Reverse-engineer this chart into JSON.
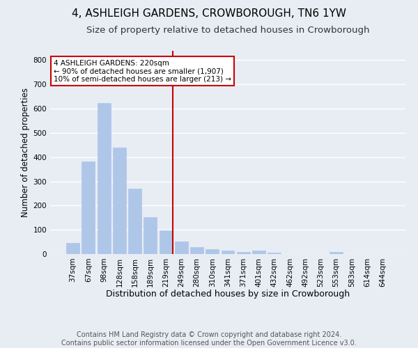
{
  "title": "4, ASHLEIGH GARDENS, CROWBOROUGH, TN6 1YW",
  "subtitle": "Size of property relative to detached houses in Crowborough",
  "xlabel": "Distribution of detached houses by size in Crowborough",
  "ylabel": "Number of detached properties",
  "categories": [
    "37sqm",
    "67sqm",
    "98sqm",
    "128sqm",
    "158sqm",
    "189sqm",
    "219sqm",
    "249sqm",
    "280sqm",
    "310sqm",
    "341sqm",
    "371sqm",
    "401sqm",
    "432sqm",
    "462sqm",
    "492sqm",
    "523sqm",
    "553sqm",
    "583sqm",
    "614sqm",
    "644sqm"
  ],
  "values": [
    47,
    383,
    623,
    438,
    270,
    152,
    97,
    53,
    30,
    20,
    15,
    10,
    13,
    5,
    0,
    0,
    0,
    8,
    0,
    0,
    0
  ],
  "bar_color": "#aec6e8",
  "bar_edgecolor": "#aec6e8",
  "background_color": "#e8edf4",
  "grid_color": "#ffffff",
  "vline_color": "#cc0000",
  "annotation_text": "4 ASHLEIGH GARDENS: 220sqm\n← 90% of detached houses are smaller (1,907)\n10% of semi-detached houses are larger (213) →",
  "annotation_box_color": "#ffffff",
  "annotation_box_edgecolor": "#cc0000",
  "footer_line1": "Contains HM Land Registry data © Crown copyright and database right 2024.",
  "footer_line2": "Contains public sector information licensed under the Open Government Licence v3.0.",
  "ylim": [
    0,
    840
  ],
  "yticks": [
    0,
    100,
    200,
    300,
    400,
    500,
    600,
    700,
    800
  ],
  "title_fontsize": 11,
  "subtitle_fontsize": 9.5,
  "xlabel_fontsize": 9,
  "ylabel_fontsize": 8.5,
  "tick_fontsize": 7.5,
  "footer_fontsize": 7
}
